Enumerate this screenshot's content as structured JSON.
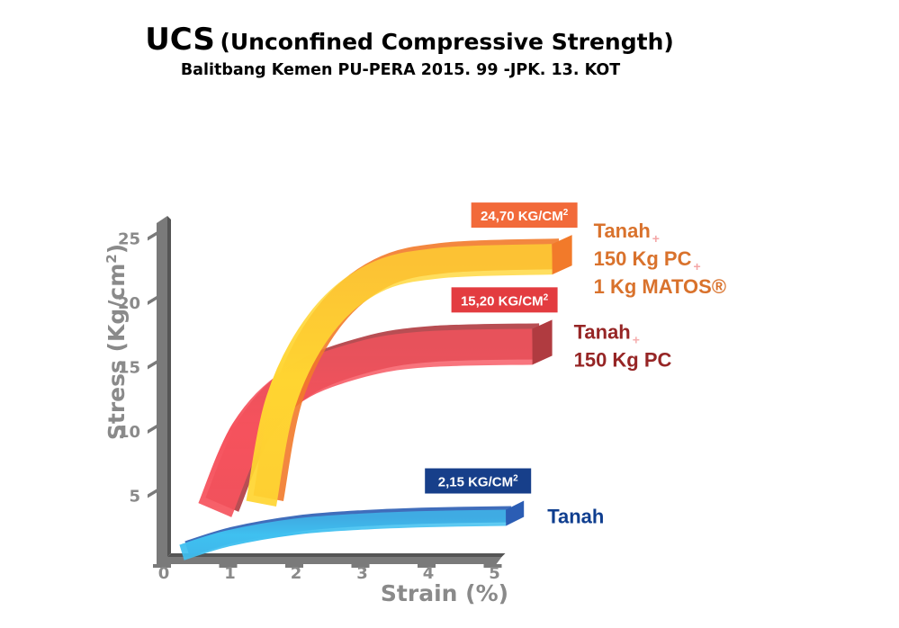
{
  "chart_data": {
    "type": "line",
    "title_main": "UCS",
    "title_paren": "(Unconfined Compressive Strength)",
    "subtitle": "Balitbang Kemen PU-PERA 2015. 99 -JPK. 13. KOT",
    "xlabel": "Strain (%)",
    "ylabel_prefix": "Stress (Kg/cm",
    "ylabel_sup": "2",
    "ylabel_suffix": ")",
    "xlim": [
      0,
      5
    ],
    "ylim": [
      0,
      27
    ],
    "x_ticks": [
      "0",
      "1",
      "2",
      "3",
      "4",
      "5"
    ],
    "y_ticks": [
      "5",
      "10",
      "15",
      "20",
      "25"
    ],
    "grid": false,
    "legend": "inline-right",
    "series": [
      {
        "id": "tanah",
        "label_lines": [
          "Tanah"
        ],
        "badge_value": "2,15 KG/CM",
        "badge_sup": "2",
        "x": [
          0.3,
          1,
          2,
          3,
          4,
          5.2
        ],
        "y": [
          0.2,
          1.3,
          2.2,
          2.6,
          2.8,
          2.9
        ],
        "color": "#3fc0f0",
        "color_dark": "#2b5db4",
        "label_color": "#0f3e8f",
        "badge_color": "#173f8a"
      },
      {
        "id": "tanah-pc",
        "label_lines": [
          "Tanah",
          "150 Kg PC"
        ],
        "badge_value": "15,20 KG/CM",
        "badge_sup": "2",
        "x": [
          0.8,
          1.3,
          2,
          3,
          4,
          5.6
        ],
        "y": [
          3.5,
          9.5,
          13.2,
          15.2,
          16,
          16.2
        ],
        "color": "#f5404c",
        "color_dark": "#a8262c",
        "label_color": "#8b0e0e",
        "badge_color": "#e1282c"
      },
      {
        "id": "tanah-pc-matos",
        "label_lines": [
          "Tanah",
          "150 Kg PC",
          "1 Kg MATOS®"
        ],
        "badge_value": "24,70 KG/CM",
        "badge_sup": "2",
        "x": [
          1.5,
          1.8,
          2.4,
          3.2,
          4.2,
          5.9
        ],
        "y": [
          4,
          12,
          18,
          21.5,
          22.7,
          23
        ],
        "color": "#ffd531",
        "color_dark": "#f27a2a",
        "label_color": "#d9722c",
        "badge_color": "#f26a3a"
      }
    ]
  }
}
